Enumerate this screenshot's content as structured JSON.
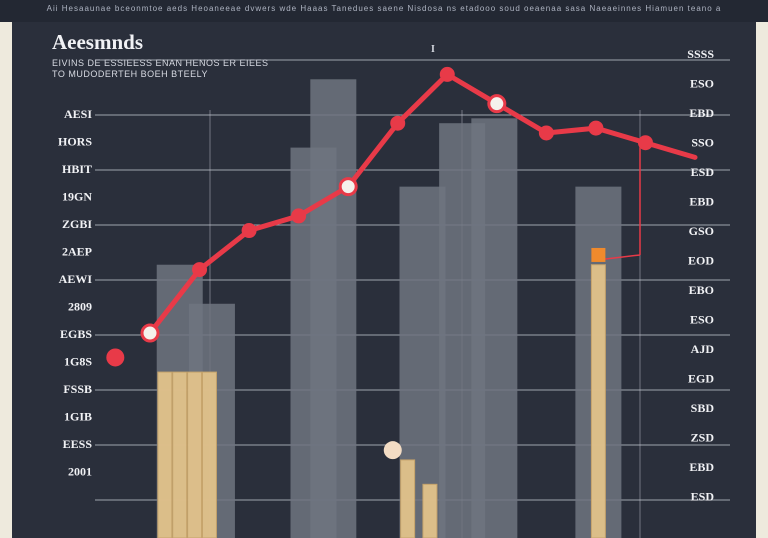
{
  "header": {
    "strip_text": "Aii Hesaaunae bceonmtoe aeds Heoaneeae dvwers wde Haaas Tanedues saene Nisdosa ns etadooo soud oeaenaa sasa Naeaeinnes Hiamuen teano a",
    "title": "Aeesmnds",
    "subtitle": "EIVINS DE ESSIEESS ENAN HENOS ER EIEES TO MUDODERTEH BOEH BTEELY"
  },
  "colors": {
    "background": "#2a2f3b",
    "line": "#e83a48",
    "bar_gray": "#6f7480",
    "bar_tan": "#e2c38b",
    "grid": "#c7cbd4",
    "accent_orange": "#f08a2c"
  },
  "chart_data": {
    "type": "bar",
    "title": "Aeesmnds",
    "subtitle": "EIVINS DE ESSIEESS ENAN HENOS ER EIEES TO MUDODERTEH BOEH BTEELY",
    "xlabel": "",
    "ylabel": "",
    "grid": true,
    "legend": "none",
    "ylim": [
      0,
      100
    ],
    "y_tick_labels_left": [
      "AESI",
      "HORS",
      "HBIT",
      "19GN",
      "ZGBI",
      "2AEP",
      "AEWI",
      "2809",
      "EGBS",
      "1G8S",
      "FSSB",
      "1GIB",
      "EESS",
      "2001"
    ],
    "y_tick_labels_right": [
      "SSSS",
      "ESO",
      "EBD",
      "SSO",
      "ESD",
      "EBD",
      "GSO",
      "EOD",
      "EBO",
      "ESO",
      "AJD",
      "EGD",
      "SBD",
      "ZSD",
      "EBD",
      "ESD"
    ],
    "annotation": "I",
    "bar_series": [
      {
        "x": 0.6,
        "value": 56,
        "kind": "gray"
      },
      {
        "x": 1.25,
        "value": 48,
        "kind": "gray"
      },
      {
        "x": 3.3,
        "value": 80,
        "kind": "gray"
      },
      {
        "x": 3.7,
        "value": 94,
        "kind": "gray"
      },
      {
        "x": 5.5,
        "value": 72,
        "kind": "gray"
      },
      {
        "x": 6.3,
        "value": 85,
        "kind": "gray"
      },
      {
        "x": 6.95,
        "value": 86,
        "kind": "gray"
      },
      {
        "x": 9.05,
        "value": 72,
        "kind": "gray"
      },
      {
        "x": 5.2,
        "value": 16,
        "kind": "tan"
      },
      {
        "x": 5.65,
        "value": 11,
        "kind": "tan"
      },
      {
        "x": 9.05,
        "value": 56,
        "kind": "tan"
      },
      {
        "x": 0.3,
        "value": 34,
        "kind": "tan"
      },
      {
        "x": 0.6,
        "value": 34,
        "kind": "tan"
      },
      {
        "x": 0.9,
        "value": 34,
        "kind": "tan"
      },
      {
        "x": 1.2,
        "value": 34,
        "kind": "tan"
      }
    ],
    "line_series": {
      "x": [
        0,
        1,
        2,
        3,
        4,
        5,
        6,
        7,
        8,
        9,
        10,
        11
      ],
      "values": [
        42,
        55,
        63,
        66,
        72,
        85,
        95,
        89,
        83,
        84,
        81,
        78
      ],
      "hollow": [
        true,
        false,
        false,
        false,
        true,
        false,
        false,
        true,
        false,
        false,
        false,
        false
      ]
    },
    "standalone_points": [
      {
        "x": -0.7,
        "value": 37,
        "kind": "red"
      },
      {
        "x": 4.9,
        "value": 18,
        "kind": "pale"
      },
      {
        "x": 9.05,
        "value": 58,
        "kind": "orange"
      }
    ]
  }
}
